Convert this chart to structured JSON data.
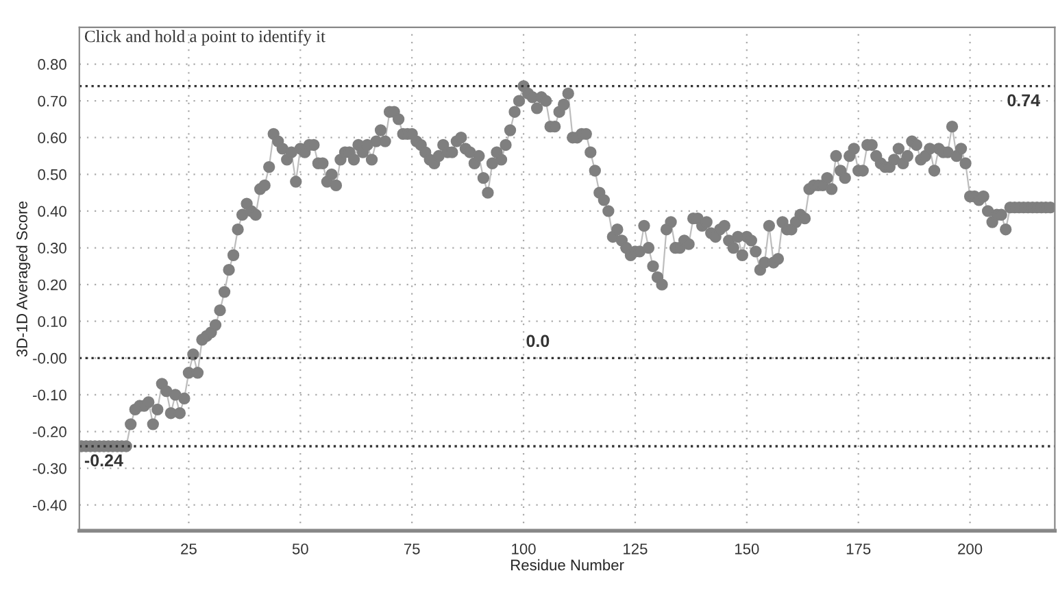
{
  "chart_data": {
    "type": "line",
    "xlabel": "Residue Number",
    "ylabel": "3D-1D Averaged Score",
    "annotations": [
      "Click and hold a point to identify it"
    ],
    "x": [
      1,
      2,
      3,
      4,
      5,
      6,
      7,
      8,
      9,
      10,
      11,
      12,
      13,
      14,
      15,
      16,
      17,
      18,
      19,
      20,
      21,
      22,
      23,
      24,
      25,
      26,
      27,
      28,
      29,
      30,
      31,
      32,
      33,
      34,
      35,
      36,
      37,
      38,
      39,
      40,
      41,
      42,
      43,
      44,
      45,
      46,
      47,
      48,
      49,
      50,
      51,
      52,
      53,
      54,
      55,
      56,
      57,
      58,
      59,
      60,
      61,
      62,
      63,
      64,
      65,
      66,
      67,
      68,
      69,
      70,
      71,
      72,
      73,
      74,
      75,
      76,
      77,
      78,
      79,
      80,
      81,
      82,
      83,
      84,
      85,
      86,
      87,
      88,
      89,
      90,
      91,
      92,
      93,
      94,
      95,
      96,
      97,
      98,
      99,
      100,
      101,
      102,
      103,
      104,
      105,
      106,
      107,
      108,
      109,
      110,
      111,
      112,
      113,
      114,
      115,
      116,
      117,
      118,
      119,
      120,
      121,
      122,
      123,
      124,
      125,
      126,
      127,
      128,
      129,
      130,
      131,
      132,
      133,
      134,
      135,
      136,
      137,
      138,
      139,
      140,
      141,
      142,
      143,
      144,
      145,
      146,
      147,
      148,
      149,
      150,
      151,
      152,
      153,
      154,
      155,
      156,
      157,
      158,
      159,
      160,
      161,
      162,
      163,
      164,
      165,
      166,
      167,
      168,
      169,
      170,
      171,
      172,
      173,
      174,
      175,
      176,
      177,
      178,
      179,
      180,
      181,
      182,
      183,
      184,
      185,
      186,
      187,
      188,
      189,
      190,
      191,
      192,
      193,
      194,
      195,
      196,
      197,
      198,
      199,
      200,
      201,
      202,
      203,
      204,
      205,
      206,
      207,
      208,
      209,
      210,
      211,
      212,
      213,
      214,
      215,
      216,
      217,
      218
    ],
    "series": [
      {
        "color": "#7f7f7f",
        "values": [
          -0.24,
          -0.24,
          -0.24,
          -0.24,
          -0.24,
          -0.24,
          -0.24,
          -0.24,
          -0.24,
          -0.24,
          -0.24,
          -0.18,
          -0.14,
          -0.13,
          -0.13,
          -0.12,
          -0.18,
          -0.14,
          -0.07,
          -0.09,
          -0.15,
          -0.1,
          -0.15,
          -0.11,
          -0.04,
          0.01,
          -0.04,
          0.05,
          0.06,
          0.07,
          0.09,
          0.13,
          0.18,
          0.24,
          0.28,
          0.35,
          0.39,
          0.42,
          0.4,
          0.39,
          0.46,
          0.47,
          0.52,
          0.61,
          0.59,
          0.57,
          0.54,
          0.56,
          0.48,
          0.57,
          0.56,
          0.58,
          0.58,
          0.53,
          0.53,
          0.48,
          0.5,
          0.47,
          0.54,
          0.56,
          0.56,
          0.54,
          0.58,
          0.56,
          0.58,
          0.54,
          0.59,
          0.62,
          0.59,
          0.67,
          0.67,
          0.65,
          0.61,
          0.61,
          0.61,
          0.59,
          0.58,
          0.56,
          0.54,
          0.53,
          0.55,
          0.58,
          0.56,
          0.56,
          0.59,
          0.6,
          0.57,
          0.56,
          0.53,
          0.55,
          0.49,
          0.45,
          0.53,
          0.56,
          0.54,
          0.58,
          0.62,
          0.67,
          0.7,
          0.74,
          0.72,
          0.71,
          0.68,
          0.71,
          0.7,
          0.63,
          0.63,
          0.67,
          0.69,
          0.72,
          0.6,
          0.6,
          0.61,
          0.61,
          0.56,
          0.51,
          0.45,
          0.43,
          0.4,
          0.33,
          0.35,
          0.32,
          0.3,
          0.28,
          0.29,
          0.29,
          0.36,
          0.3,
          0.25,
          0.22,
          0.2,
          0.35,
          0.37,
          0.3,
          0.3,
          0.32,
          0.31,
          0.38,
          0.38,
          0.36,
          0.37,
          0.34,
          0.33,
          0.35,
          0.36,
          0.32,
          0.3,
          0.33,
          0.28,
          0.33,
          0.32,
          0.29,
          0.24,
          0.26,
          0.36,
          0.26,
          0.27,
          0.37,
          0.35,
          0.35,
          0.37,
          0.39,
          0.38,
          0.46,
          0.47,
          0.47,
          0.47,
          0.49,
          0.46,
          0.55,
          0.51,
          0.49,
          0.55,
          0.57,
          0.51,
          0.51,
          0.58,
          0.58,
          0.55,
          0.53,
          0.52,
          0.52,
          0.54,
          0.57,
          0.53,
          0.55,
          0.59,
          0.58,
          0.54,
          0.55,
          0.57,
          0.51,
          0.57,
          0.56,
          0.56,
          0.63,
          0.55,
          0.57,
          0.53,
          0.44,
          0.44,
          0.43,
          0.44,
          0.4,
          0.37,
          0.39,
          0.39,
          0.35,
          0.41,
          0.41,
          0.41,
          0.41,
          0.41,
          0.41,
          0.41,
          0.41,
          0.41,
          0.41
        ]
      }
    ],
    "xlim": [
      0.5,
      219
    ],
    "ylim": [
      -0.47,
      0.9
    ],
    "xticks": [
      25,
      50,
      75,
      100,
      125,
      150,
      175,
      200
    ],
    "yticks": [
      {
        "value": 0.8,
        "label": "0.80"
      },
      {
        "value": 0.7,
        "label": "0.70"
      },
      {
        "value": 0.6,
        "label": "0.60"
      },
      {
        "value": 0.5,
        "label": "0.50"
      },
      {
        "value": 0.4,
        "label": "0.40"
      },
      {
        "value": 0.3,
        "label": "0.30"
      },
      {
        "value": 0.2,
        "label": "0.20"
      },
      {
        "value": 0.1,
        "label": "0.10"
      },
      {
        "value": 0,
        "label": "-0.00"
      },
      {
        "value": -0.1,
        "label": "-0.10"
      },
      {
        "value": -0.2,
        "label": "-0.20"
      },
      {
        "value": -0.3,
        "label": "-0.30"
      },
      {
        "value": -0.4,
        "label": "-0.40"
      }
    ],
    "ref_lines": [
      {
        "axis": "y",
        "value": 0.74,
        "label": "0.74",
        "line_style": "dotted"
      },
      {
        "axis": "y",
        "value": 0,
        "label": "0.0",
        "line_style": "dotted"
      },
      {
        "axis": "y",
        "value": -0.24,
        "label": "-0.24",
        "line_style": "dotted"
      }
    ],
    "grid": true,
    "marker": "circle",
    "line_style": "solid",
    "legend": false
  }
}
